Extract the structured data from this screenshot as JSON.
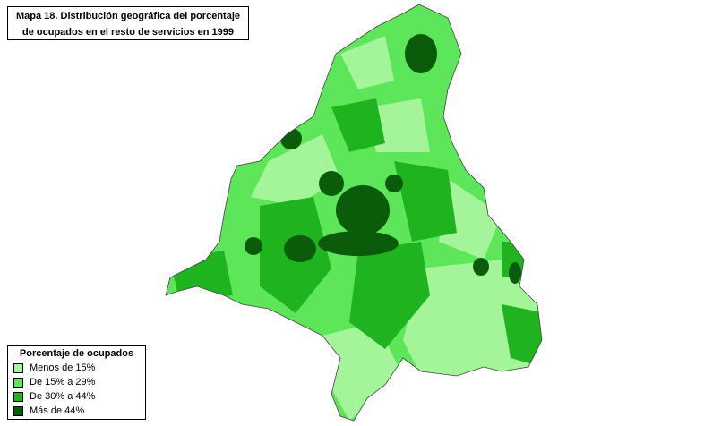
{
  "map": {
    "title": [
      "Mapa 18. Distribución geográfica del porcentaje",
      "de ocupados en el resto de servicios en  1999"
    ],
    "legend": {
      "title": "Porcentaje de ocupados",
      "items": [
        {
          "label": "Menos de 15%",
          "color": "#a4f49a"
        },
        {
          "label": "De 15% a 29%",
          "color": "#5ee65a"
        },
        {
          "label": "De 30% a 44%",
          "color": "#1fb41f"
        },
        {
          "label": "Más de 44%",
          "color": "#0a5c0a"
        }
      ]
    }
  }
}
